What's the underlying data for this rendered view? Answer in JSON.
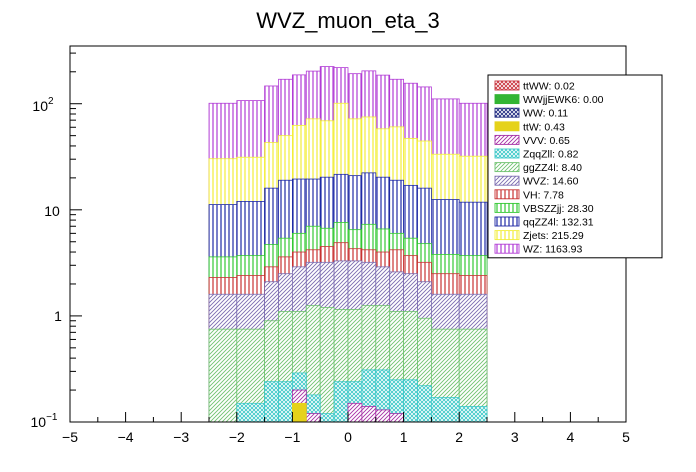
{
  "chart_data": {
    "type": "stacked-histogram",
    "title": "WVZ_muon_eta_3",
    "xlabel": "",
    "ylabel": "",
    "xlim": [
      -5,
      5
    ],
    "ylim": [
      0.1,
      350
    ],
    "yscale": "log",
    "x_ticks": [
      "−5",
      "−4",
      "−3",
      "−2",
      "−1",
      "0",
      "1",
      "2",
      "3",
      "4",
      "5"
    ],
    "y_tick_labels": {
      "hundred_base": "10",
      "hundred_exp": "2",
      "ten": "10",
      "one": "1",
      "tenth_base": "10",
      "tenth_exp": "−1"
    },
    "bin_edges": [
      -2.5,
      -2.0,
      -1.5,
      -1.25,
      -1.0,
      -0.75,
      -0.5,
      -0.25,
      0.0,
      0.25,
      0.5,
      0.75,
      1.0,
      1.25,
      1.5,
      2.0,
      2.5
    ],
    "legend_position": "top-right",
    "cumulative_note": "Stacked cumulative bin contents per bin, read off the log axis",
    "series": [
      {
        "name": "ttWW",
        "label": "ttWW: 0.02",
        "color": "#c8323c",
        "pattern": "cross",
        "cumulative": [
          0.1,
          0.1,
          0.1,
          0.1,
          0.1,
          0.1,
          0.1,
          0.1,
          0.1,
          0.1,
          0.1,
          0.1,
          0.1,
          0.1,
          0.1,
          0.1
        ]
      },
      {
        "name": "WWjjEWK6",
        "label": "WWjjEWK6: 0.00",
        "color": "#33b533",
        "pattern": "solid",
        "cumulative": [
          0.1,
          0.1,
          0.1,
          0.1,
          0.1,
          0.1,
          0.1,
          0.1,
          0.1,
          0.1,
          0.1,
          0.1,
          0.1,
          0.1,
          0.1,
          0.1
        ]
      },
      {
        "name": "WW",
        "label": "WW: 0.11",
        "color": "#1f2a80",
        "pattern": "cross",
        "cumulative": [
          0.1,
          0.1,
          0.1,
          0.1,
          0.1,
          0.1,
          0.1,
          0.1,
          0.1,
          0.1,
          0.1,
          0.1,
          0.1,
          0.1,
          0.1,
          0.1
        ]
      },
      {
        "name": "ttW",
        "label": "ttW: 0.43",
        "color": "#e5d21a",
        "pattern": "solid",
        "cumulative": [
          0.1,
          0.1,
          0.1,
          0.1,
          0.15,
          0.1,
          0.1,
          0.1,
          0.1,
          0.1,
          0.1,
          0.1,
          0.1,
          0.1,
          0.1,
          0.1
        ]
      },
      {
        "name": "VVV",
        "label": "VVV: 0.65",
        "color": "#a62fa6",
        "pattern": "diag",
        "cumulative": [
          0.1,
          0.1,
          0.1,
          0.1,
          0.2,
          0.12,
          0.1,
          0.1,
          0.15,
          0.14,
          0.13,
          0.12,
          0.1,
          0.1,
          0.1,
          0.1
        ]
      },
      {
        "name": "ZqqZll",
        "label": "ZqqZll: 0.82",
        "color": "#3cc8c8",
        "pattern": "cross",
        "cumulative": [
          0.1,
          0.15,
          0.24,
          0.24,
          0.29,
          0.18,
          0.12,
          0.24,
          0.24,
          0.31,
          0.31,
          0.25,
          0.25,
          0.22,
          0.17,
          0.14
        ]
      },
      {
        "name": "ggZZ4l",
        "label": "ggZZ4l: 8.40",
        "color": "#6fc26f",
        "pattern": "diag",
        "cumulative": [
          0.75,
          0.75,
          0.9,
          1.1,
          1.1,
          1.25,
          1.2,
          1.15,
          1.15,
          1.25,
          1.25,
          1.1,
          1.1,
          0.95,
          0.75,
          0.75
        ]
      },
      {
        "name": "WVZ",
        "label": "WVZ: 14.60",
        "color": "#7b6bb0",
        "pattern": "diag",
        "cumulative": [
          1.6,
          1.6,
          2.1,
          2.5,
          2.9,
          3.2,
          3.2,
          3.3,
          3.3,
          3.2,
          2.9,
          2.6,
          2.5,
          2.1,
          1.6,
          1.6
        ]
      },
      {
        "name": "VH",
        "label": "VH: 7.78",
        "color": "#c83232",
        "pattern": "vert",
        "cumulative": [
          2.3,
          2.4,
          2.9,
          3.6,
          4.0,
          4.2,
          4.5,
          4.9,
          4.3,
          4.2,
          4.0,
          4.2,
          3.7,
          3.2,
          2.5,
          2.4
        ]
      },
      {
        "name": "VBSZZjj",
        "label": "VBSZZjj: 28.30",
        "color": "#33c833",
        "pattern": "vert",
        "cumulative": [
          3.6,
          3.7,
          4.7,
          5.4,
          6.0,
          7.0,
          6.7,
          7.6,
          6.5,
          7.3,
          6.6,
          6.0,
          5.4,
          4.8,
          3.8,
          3.7
        ]
      },
      {
        "name": "qqZZ4l",
        "label": "qqZZ4l: 132.31",
        "color": "#1f2aa6",
        "pattern": "vert",
        "cumulative": [
          11.2,
          12.0,
          16.0,
          19.0,
          19.5,
          19.5,
          20.3,
          21.6,
          21.0,
          22.3,
          20.3,
          19.0,
          17.0,
          16.0,
          12.5,
          11.8
        ]
      },
      {
        "name": "Zjets",
        "label": "Zjets: 215.29",
        "color": "#f2ee3a",
        "pattern": "vert",
        "cumulative": [
          30.3,
          31.3,
          43.0,
          50.0,
          62.5,
          72.0,
          69.0,
          101.0,
          72.0,
          75.0,
          58.0,
          60.5,
          47.0,
          44.5,
          33.4,
          32.0
        ]
      },
      {
        "name": "WZ",
        "label": "WZ: 1163.93",
        "color": "#b23cd6",
        "pattern": "vert",
        "cumulative": [
          101.0,
          107.0,
          147.0,
          170.0,
          187.0,
          203.0,
          224.0,
          219.0,
          192.0,
          204.0,
          186.0,
          170.0,
          156.0,
          144.0,
          111.0,
          101.0
        ]
      }
    ]
  }
}
